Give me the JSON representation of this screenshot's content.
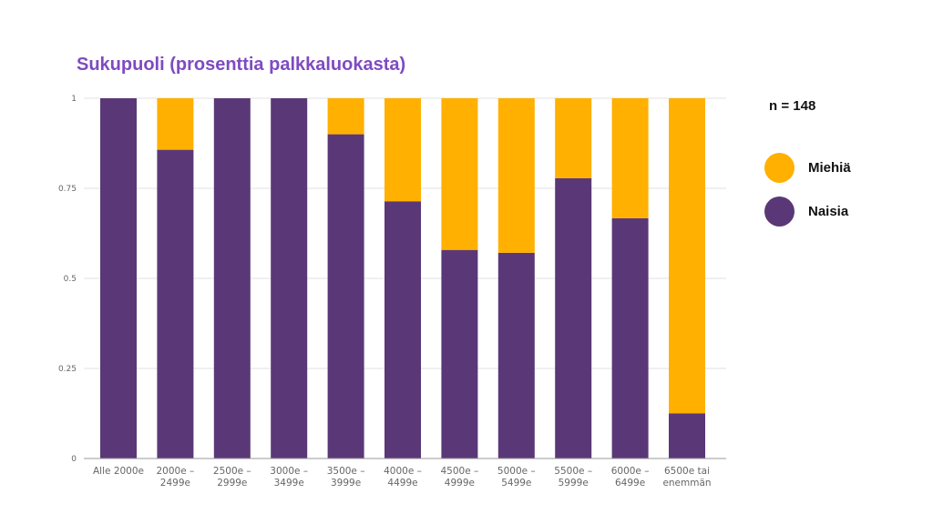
{
  "chart_data": {
    "type": "bar",
    "stacked": true,
    "title": "Sukupuoli (prosenttia palkkaluokasta)",
    "note": "n = 148",
    "categories": [
      [
        "Alle 2000e"
      ],
      [
        "2000e –",
        "2499e"
      ],
      [
        "2500e –",
        "2999e"
      ],
      [
        "3000e –",
        "3499e"
      ],
      [
        "3500e –",
        "3999e"
      ],
      [
        "4000e –",
        "4499e"
      ],
      [
        "4500e –",
        "4999e"
      ],
      [
        "5000e –",
        "5499e"
      ],
      [
        "5500e –",
        "5999e"
      ],
      [
        "6000e –",
        "6499e"
      ],
      [
        "6500e tai",
        "enemmän"
      ]
    ],
    "series": [
      {
        "name": "Naisia",
        "color": "#5a3877",
        "values": [
          1,
          0.857,
          1,
          1,
          0.9,
          0.714,
          0.579,
          0.571,
          0.778,
          0.667,
          0.125
        ]
      },
      {
        "name": "Miehiä",
        "color": "#ffb000",
        "values": [
          0,
          0.143,
          0,
          0,
          0.1,
          0.286,
          0.421,
          0.429,
          0.222,
          0.333,
          0.875
        ]
      }
    ],
    "yticks": [
      "0",
      "0.25",
      "0.5",
      "0.75",
      "1"
    ],
    "ylim": [
      0,
      1
    ],
    "grid": true,
    "legend": {
      "placement": "right",
      "items": [
        {
          "label": "Miehiä",
          "color": "#ffb000"
        },
        {
          "label": "Naisia",
          "color": "#5a3877"
        }
      ]
    }
  }
}
